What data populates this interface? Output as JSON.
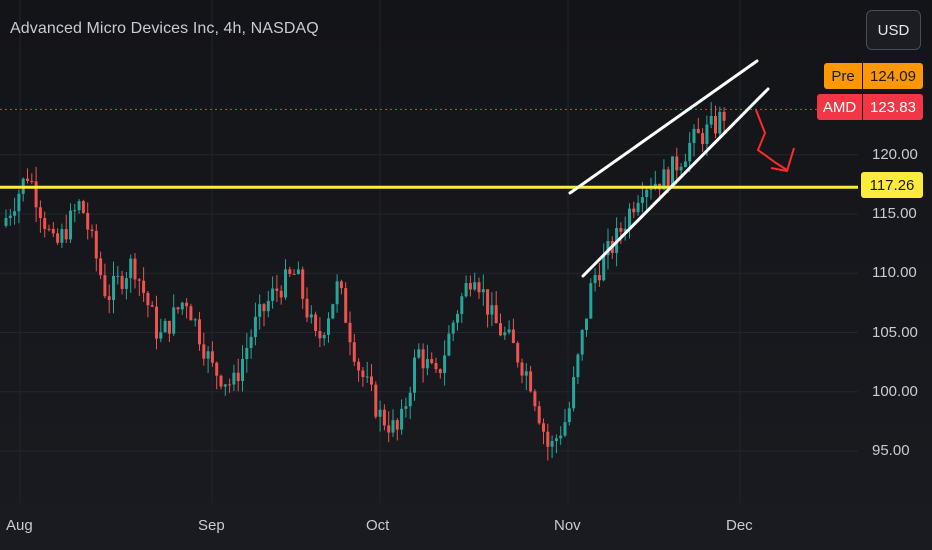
{
  "header": {
    "title": "Advanced Micro Devices Inc, 4h, NASDAQ",
    "currency_button": "USD"
  },
  "price_tags": {
    "pre": {
      "label": "Pre",
      "value": "124.09"
    },
    "last": {
      "label": "AMD",
      "value": "123.83"
    },
    "level": {
      "value": "117.26"
    }
  },
  "colors": {
    "up": "#26a69a",
    "down": "#ef5350",
    "level_line": "#ffeb3b",
    "pre": "#ff9800",
    "last": "#f23645",
    "annotation_lines": "#ffffff",
    "arrow": "#ff2a2a"
  },
  "chart_data": {
    "type": "candlestick",
    "instrument": "Advanced Micro Devices Inc",
    "timeframe": "4h",
    "exchange": "NASDAQ",
    "x_labels": [
      "Aug",
      "Sep",
      "Oct",
      "Nov",
      "Dec"
    ],
    "y_ticks": [
      "95.00",
      "100.00",
      "105.00",
      "110.00",
      "115.00",
      "120.00"
    ],
    "ylim": [
      92,
      128
    ],
    "horizontal_level": 117.26,
    "last_price": 123.83,
    "pre_market_price": 124.09,
    "price_path": [
      [
        "Aug",
        114
      ],
      [
        "Aug",
        118.5
      ],
      [
        "Aug",
        112
      ],
      [
        "Aug",
        116
      ],
      [
        "Aug",
        108
      ],
      [
        "Aug",
        111
      ],
      [
        "Aug",
        104.5
      ],
      [
        "Aug",
        108
      ],
      [
        "Sep",
        102
      ],
      [
        "Sep",
        100.5
      ],
      [
        "Sep",
        105.5
      ],
      [
        "Sep",
        108.5
      ],
      [
        "Sep",
        110
      ],
      [
        "Sep",
        104
      ],
      [
        "Sep",
        109
      ],
      [
        "Sep",
        102
      ],
      [
        "Oct",
        98
      ],
      [
        "Oct",
        96.5
      ],
      [
        "Oct",
        103.5
      ],
      [
        "Oct",
        101
      ],
      [
        "Oct",
        106.5
      ],
      [
        "Oct",
        110.5
      ],
      [
        "Oct",
        106
      ],
      [
        "Oct",
        104
      ],
      [
        "Oct",
        101
      ],
      [
        "Oct",
        95
      ],
      [
        "Nov",
        98
      ],
      [
        "Nov",
        109.5
      ],
      [
        "Nov",
        113
      ],
      [
        "Nov",
        117.5
      ],
      [
        "Nov",
        118
      ],
      [
        "Nov",
        121
      ],
      [
        "Nov",
        122.5
      ],
      [
        "Dec",
        123.83
      ]
    ],
    "annotations": [
      {
        "type": "rising-wedge",
        "upper": [
          [
            121,
            117
          ],
          [
            122.5,
            126.5
          ]
        ],
        "lower": [
          [
            110,
            109.5
          ],
          [
            122,
            125
          ]
        ]
      },
      {
        "type": "bearish-arrow",
        "direction": "down"
      }
    ]
  }
}
